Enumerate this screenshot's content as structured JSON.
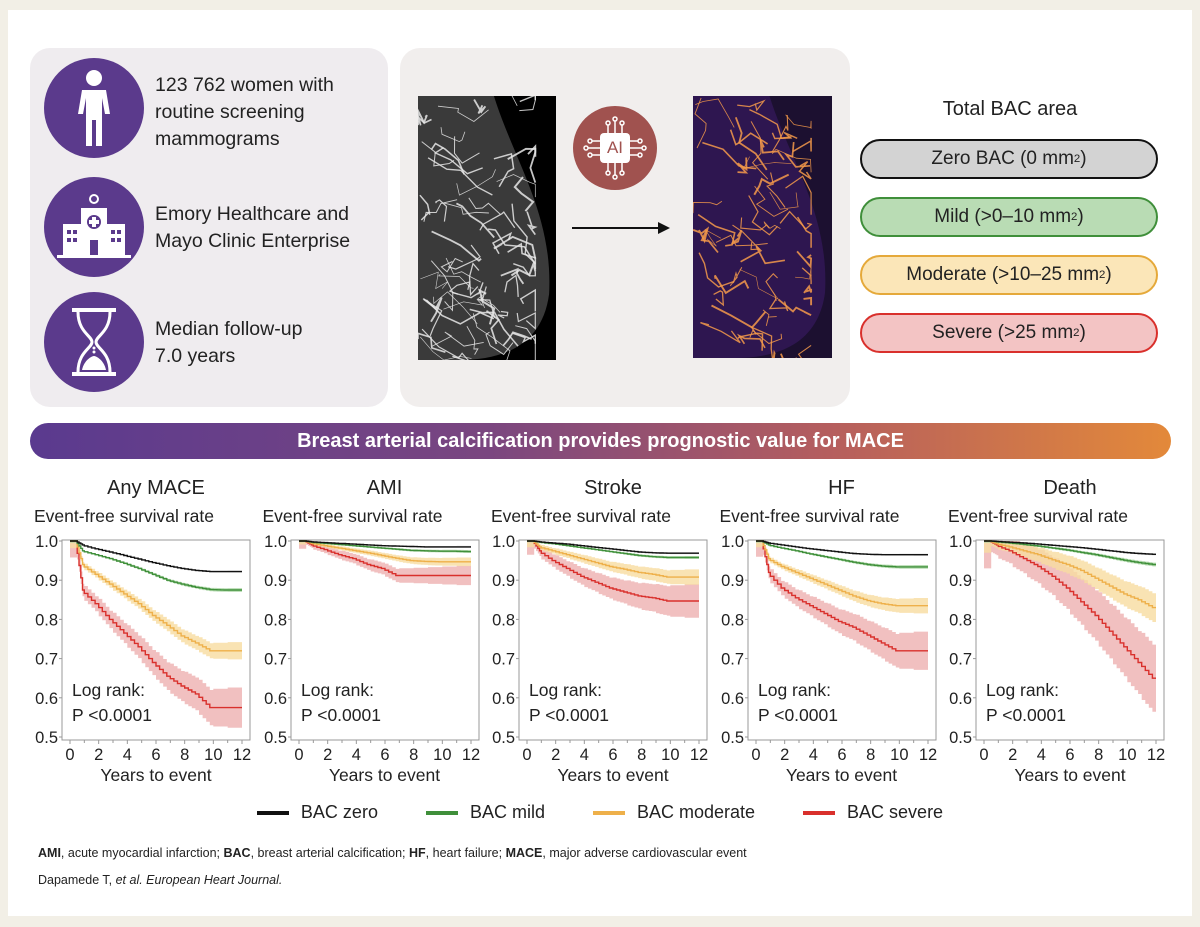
{
  "summary": {
    "population": "123 762 women with routine screening mammograms",
    "population_lines": [
      "123 762 women with",
      "routine screening",
      "mammograms"
    ],
    "sites_lines": [
      "Emory Healthcare and",
      "Mayo Clinic Enterprise"
    ],
    "followup_lines": [
      "Median follow-up",
      "7.0 years"
    ],
    "icons": [
      "woman-icon",
      "hospital-icon",
      "hourglass-icon"
    ],
    "circle_color": "#5b3a8c"
  },
  "pipeline": {
    "ai_label": "AI",
    "ai_color": "#a0524f"
  },
  "bac_categories": {
    "title": "Total BAC area",
    "items": [
      {
        "label": "Zero BAC (0 mm",
        "sup": "2",
        "tail": ")",
        "fill": "#d3d3d3",
        "border": "#111111"
      },
      {
        "label": "Mild (>0–10 mm",
        "sup": "2",
        "tail": ")",
        "fill": "#b9dcb4",
        "border": "#3f8f3a"
      },
      {
        "label": "Moderate (>10–25 mm",
        "sup": "2",
        "tail": ")",
        "fill": "#fbe6b8",
        "border": "#e5a93a"
      },
      {
        "label": "Severe (>25 mm",
        "sup": "2",
        "tail": ")",
        "fill": "#f3c4c4",
        "border": "#d9302c"
      }
    ]
  },
  "banner": "Breast arterial calcification provides prognostic value for MACE",
  "chart_data": [
    {
      "type": "line",
      "title": "Any MACE",
      "ylabel": "Event-free survival rate",
      "xlabel": "Years to event",
      "ylim": [
        0.5,
        1.0
      ],
      "xlim": [
        0,
        12
      ],
      "xticks": [
        "0",
        "2",
        "4",
        "6",
        "8",
        "10",
        "12"
      ],
      "yticks": [
        "1.0",
        "0.9",
        "0.8",
        "0.7",
        "0.6",
        "0.5"
      ],
      "annotation": [
        "Log rank:",
        "P <0.0001"
      ],
      "x": [
        0,
        1,
        2,
        3,
        4,
        5,
        6,
        7,
        8,
        9,
        10,
        11,
        12
      ],
      "series": [
        {
          "name": "BAC zero",
          "values": [
            1,
            0.99,
            0.98,
            0.972,
            0.963,
            0.954,
            0.945,
            0.937,
            0.93,
            0.925,
            0.922,
            0.922,
            0.922
          ],
          "ci": 0.002
        },
        {
          "name": "BAC mild",
          "values": [
            1,
            0.975,
            0.965,
            0.955,
            0.943,
            0.93,
            0.915,
            0.9,
            0.89,
            0.882,
            0.876,
            0.875,
            0.875
          ],
          "ci": 0.004
        },
        {
          "name": "BAC moderate",
          "values": [
            1,
            0.94,
            0.915,
            0.89,
            0.865,
            0.84,
            0.81,
            0.785,
            0.758,
            0.74,
            0.72,
            0.72,
            0.72
          ],
          "ci": 0.018
        },
        {
          "name": "BAC severe",
          "values": [
            1,
            0.875,
            0.84,
            0.8,
            0.765,
            0.73,
            0.69,
            0.655,
            0.63,
            0.61,
            0.575,
            0.575,
            0.575
          ],
          "ci": 0.042
        }
      ]
    },
    {
      "type": "line",
      "title": "AMI",
      "ylabel": "Event-free survival rate",
      "xlabel": "Years to event",
      "ylim": [
        0.5,
        1.0
      ],
      "xlim": [
        0,
        12
      ],
      "xticks": [
        "0",
        "2",
        "4",
        "6",
        "8",
        "10",
        "12"
      ],
      "yticks": [
        "1.0",
        "0.9",
        "0.8",
        "0.7",
        "0.6",
        "0.5"
      ],
      "annotation": [
        "Log rank:",
        "P <0.0001"
      ],
      "x": [
        0,
        1,
        2,
        3,
        4,
        5,
        6,
        7,
        8,
        9,
        10,
        11,
        12
      ],
      "series": [
        {
          "name": "BAC zero",
          "values": [
            1,
            0.998,
            0.996,
            0.994,
            0.992,
            0.99,
            0.988,
            0.987,
            0.986,
            0.985,
            0.985,
            0.985,
            0.985
          ],
          "ci": 0.002
        },
        {
          "name": "BAC mild",
          "values": [
            1,
            0.997,
            0.994,
            0.991,
            0.988,
            0.985,
            0.982,
            0.979,
            0.976,
            0.975,
            0.974,
            0.974,
            0.973
          ],
          "ci": 0.003
        },
        {
          "name": "BAC moderate",
          "values": [
            1,
            0.994,
            0.988,
            0.982,
            0.976,
            0.97,
            0.963,
            0.956,
            0.95,
            0.948,
            0.947,
            0.947,
            0.947
          ],
          "ci": 0.009
        },
        {
          "name": "BAC severe",
          "values": [
            1,
            0.99,
            0.978,
            0.965,
            0.955,
            0.94,
            0.93,
            0.912,
            0.912,
            0.912,
            0.912,
            0.912,
            0.912
          ],
          "ci": 0.02
        }
      ]
    },
    {
      "type": "line",
      "title": "Stroke",
      "ylabel": "Event-free survival rate",
      "xlabel": "Years to event",
      "ylim": [
        0.5,
        1.0
      ],
      "xlim": [
        0,
        12
      ],
      "xticks": [
        "0",
        "2",
        "4",
        "6",
        "8",
        "10",
        "12"
      ],
      "yticks": [
        "1.0",
        "0.9",
        "0.8",
        "0.7",
        "0.6",
        "0.5"
      ],
      "annotation": [
        "Log rank:",
        "P <0.0001"
      ],
      "x": [
        0,
        1,
        2,
        3,
        4,
        5,
        6,
        7,
        8,
        9,
        10,
        11,
        12
      ],
      "series": [
        {
          "name": "BAC zero",
          "values": [
            1,
            0.998,
            0.995,
            0.992,
            0.988,
            0.984,
            0.98,
            0.976,
            0.972,
            0.97,
            0.969,
            0.969,
            0.969
          ],
          "ci": 0.002
        },
        {
          "name": "BAC mild",
          "values": [
            1,
            0.997,
            0.993,
            0.988,
            0.983,
            0.978,
            0.973,
            0.968,
            0.963,
            0.96,
            0.958,
            0.958,
            0.958
          ],
          "ci": 0.003
        },
        {
          "name": "BAC moderate",
          "values": [
            1,
            0.985,
            0.975,
            0.965,
            0.955,
            0.945,
            0.935,
            0.928,
            0.92,
            0.915,
            0.908,
            0.908,
            0.908
          ],
          "ci": 0.016
        },
        {
          "name": "BAC severe",
          "values": [
            1,
            0.975,
            0.95,
            0.93,
            0.91,
            0.895,
            0.88,
            0.87,
            0.86,
            0.855,
            0.847,
            0.847,
            0.847
          ],
          "ci": 0.035
        }
      ]
    },
    {
      "type": "line",
      "title": "HF",
      "ylabel": "Event-free survival rate",
      "xlabel": "Years to event",
      "ylim": [
        0.5,
        1.0
      ],
      "xlim": [
        0,
        12
      ],
      "xticks": [
        "0",
        "2",
        "4",
        "6",
        "8",
        "10",
        "12"
      ],
      "yticks": [
        "1.0",
        "0.9",
        "0.8",
        "0.7",
        "0.6",
        "0.5"
      ],
      "annotation": [
        "Log rank:",
        "P <0.0001"
      ],
      "x": [
        0,
        1,
        2,
        3,
        4,
        5,
        6,
        7,
        8,
        9,
        10,
        11,
        12
      ],
      "series": [
        {
          "name": "BAC zero",
          "values": [
            1,
            0.995,
            0.99,
            0.985,
            0.98,
            0.976,
            0.972,
            0.968,
            0.966,
            0.965,
            0.965,
            0.965,
            0.965
          ],
          "ci": 0.002
        },
        {
          "name": "BAC mild",
          "values": [
            1,
            0.99,
            0.982,
            0.975,
            0.967,
            0.96,
            0.953,
            0.946,
            0.94,
            0.936,
            0.934,
            0.934,
            0.934
          ],
          "ci": 0.004
        },
        {
          "name": "BAC moderate",
          "values": [
            1,
            0.955,
            0.935,
            0.92,
            0.905,
            0.89,
            0.875,
            0.86,
            0.848,
            0.84,
            0.835,
            0.835,
            0.835
          ],
          "ci": 0.016
        },
        {
          "name": "BAC severe",
          "values": [
            1,
            0.92,
            0.88,
            0.855,
            0.835,
            0.815,
            0.795,
            0.78,
            0.76,
            0.74,
            0.72,
            0.72,
            0.72
          ],
          "ci": 0.04
        }
      ]
    },
    {
      "type": "line",
      "title": "Death",
      "ylabel": "Event-free survival rate",
      "xlabel": "Years to event",
      "ylim": [
        0.5,
        1.0
      ],
      "xlim": [
        0,
        12
      ],
      "xticks": [
        "0",
        "2",
        "4",
        "6",
        "8",
        "10",
        "12"
      ],
      "yticks": [
        "1.0",
        "0.9",
        "0.8",
        "0.7",
        "0.6",
        "0.5"
      ],
      "annotation": [
        "Log rank:",
        "P <0.0001"
      ],
      "x": [
        0,
        1,
        2,
        3,
        4,
        5,
        6,
        7,
        8,
        9,
        10,
        11,
        12
      ],
      "series": [
        {
          "name": "BAC zero",
          "values": [
            1,
            0.999,
            0.997,
            0.995,
            0.992,
            0.989,
            0.986,
            0.983,
            0.979,
            0.975,
            0.971,
            0.968,
            0.966
          ],
          "ci": 0.002
        },
        {
          "name": "BAC mild",
          "values": [
            1,
            0.998,
            0.995,
            0.991,
            0.987,
            0.982,
            0.977,
            0.971,
            0.965,
            0.958,
            0.951,
            0.945,
            0.94
          ],
          "ci": 0.004
        },
        {
          "name": "BAC moderate",
          "values": [
            1,
            0.993,
            0.985,
            0.975,
            0.965,
            0.952,
            0.94,
            0.925,
            0.905,
            0.885,
            0.865,
            0.85,
            0.83
          ],
          "ci": 0.03
        },
        {
          "name": "BAC severe",
          "values": [
            1,
            0.99,
            0.975,
            0.955,
            0.935,
            0.91,
            0.88,
            0.845,
            0.81,
            0.77,
            0.73,
            0.69,
            0.65
          ],
          "ci": 0.07
        }
      ]
    }
  ],
  "legend": [
    {
      "label": "BAC zero",
      "color": "#111111"
    },
    {
      "label": "BAC mild",
      "color": "#3f8f3a"
    },
    {
      "label": "BAC moderate",
      "color": "#eeb04a"
    },
    {
      "label": "BAC severe",
      "color": "#d9302c"
    }
  ],
  "series_colors": {
    "BAC zero": "#111111",
    "BAC mild": "#3f8f3a",
    "BAC moderate": "#eeb04a",
    "BAC severe": "#d9302c"
  },
  "band_colors": {
    "BAC zero": "#bbbbbb",
    "BAC mild": "#a6d3a0",
    "BAC moderate": "#f8dca0",
    "BAC severe": "#eeb0b0"
  },
  "footer": {
    "abbreviations": [
      {
        "term": "AMI",
        "def": ", acute myocardial infarction; "
      },
      {
        "term": "BAC",
        "def": ", breast arterial calcification; "
      },
      {
        "term": "HF",
        "def": ", heart failure; "
      },
      {
        "term": "MACE",
        "def": ", major adverse cardiovascular event"
      }
    ],
    "citation_author": "Dapamede T, ",
    "citation_etal": "et al. European Heart Journal."
  }
}
